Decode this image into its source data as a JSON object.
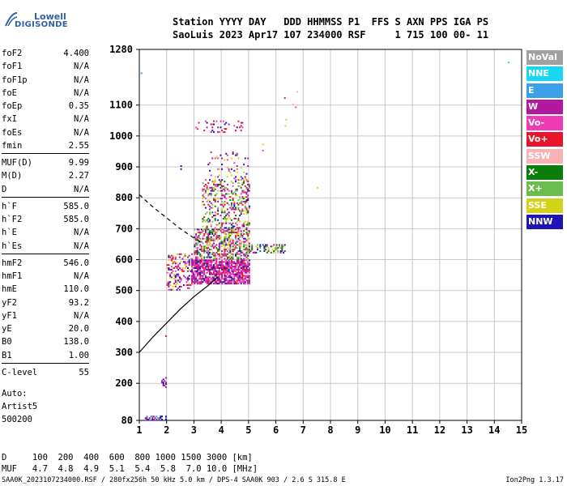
{
  "logo": {
    "line1": "Lowell",
    "line2": "DIGISONDE"
  },
  "header": {
    "line1": "Station YYYY DAY   DDD HHMMSS P1  FFS S AXN PPS IGA PS",
    "line2": "SaoLuis 2023 Apr17 107 234000 RSF     1 715 100 00- 11"
  },
  "params": [
    {
      "name": "foF2",
      "value": "4.400"
    },
    {
      "name": "foF1",
      "value": "N/A"
    },
    {
      "name": "foF1p",
      "value": "N/A"
    },
    {
      "name": "foE",
      "value": "N/A"
    },
    {
      "name": "foEp",
      "value": "0.35"
    },
    {
      "name": "fxI",
      "value": "N/A"
    },
    {
      "name": "foEs",
      "value": "N/A"
    },
    {
      "name": "fmin",
      "value": "2.55"
    },
    {
      "name": "MUF(D)",
      "value": "9.99"
    },
    {
      "name": "M(D)",
      "value": "2.27"
    },
    {
      "name": "D",
      "value": "N/A"
    },
    {
      "name": "h`F",
      "value": "585.0"
    },
    {
      "name": "h`F2",
      "value": "585.0"
    },
    {
      "name": "h`E",
      "value": "N/A"
    },
    {
      "name": "h`Es",
      "value": "N/A"
    },
    {
      "name": "hmF2",
      "value": "546.0"
    },
    {
      "name": "hmF1",
      "value": "N/A"
    },
    {
      "name": "hmE",
      "value": "110.0"
    },
    {
      "name": "yF2",
      "value": "93.2"
    },
    {
      "name": "yF1",
      "value": "N/A"
    },
    {
      "name": "yE",
      "value": "20.0"
    },
    {
      "name": "B0",
      "value": "138.0"
    },
    {
      "name": "B1",
      "value": "1.00"
    },
    {
      "name": "C-level",
      "value": "55"
    }
  ],
  "auto": [
    "Auto:",
    "Artist5",
    "500200"
  ],
  "legend": [
    {
      "label": "NoVal",
      "color": "#a0a0a0"
    },
    {
      "label": "NNE",
      "color": "#19d7f0"
    },
    {
      "label": "E",
      "color": "#3aa0e8"
    },
    {
      "label": "W",
      "color": "#b0199f"
    },
    {
      "label": "Vo-",
      "color": "#f03cb4"
    },
    {
      "label": "Vo+",
      "color": "#e8142d"
    },
    {
      "label": "SSW",
      "color": "#f8b4b4"
    },
    {
      "label": "X-",
      "color": "#0a7d0a"
    },
    {
      "label": "X+",
      "color": "#6cbd50"
    },
    {
      "label": "SSE",
      "color": "#d2d219"
    },
    {
      "label": "NNW",
      "color": "#1e14b4"
    }
  ],
  "footer": {
    "d_row": "D     100  200  400  600  800 1000 1500 3000 [km]",
    "muf_row": "MUF   4.7  4.8  4.9  5.1  5.4  5.8  7.0 10.0 [MHz]",
    "file_line": "SAA0K_2023107234000.RSF / 280fx256h 50 kHz 5.0 km / DPS-4 SAA0K 903 / 2.6 S 315.8 E",
    "version": "Ion2Png 1.3.17"
  },
  "chart_data": {
    "type": "scatter",
    "xlabel": "",
    "ylabel": "",
    "xlim": [
      1,
      15
    ],
    "ylim": [
      80,
      1280
    ],
    "xticks": [
      1,
      2,
      3,
      4,
      5,
      6,
      7,
      8,
      9,
      10,
      11,
      12,
      13,
      14,
      15
    ],
    "yticks": [
      80,
      200,
      300,
      400,
      500,
      600,
      700,
      800,
      900,
      1000,
      1100,
      1280
    ],
    "grid": true,
    "legend_position": "right",
    "series": [
      {
        "kind": "line",
        "style": "solid",
        "points": [
          [
            1.0,
            300
          ],
          [
            1.5,
            350
          ],
          [
            2.0,
            395
          ],
          [
            2.5,
            440
          ],
          [
            3.0,
            480
          ],
          [
            3.5,
            515
          ],
          [
            3.9,
            545
          ]
        ]
      },
      {
        "kind": "line",
        "style": "dashed",
        "points": [
          [
            1.0,
            810
          ],
          [
            1.5,
            770
          ],
          [
            2.0,
            735
          ],
          [
            2.5,
            700
          ],
          [
            3.0,
            670
          ],
          [
            3.3,
            655
          ]
        ]
      }
    ],
    "echo_regions": [
      {
        "x": [
          2.9,
          5.0
        ],
        "y": [
          520,
          600
        ],
        "density": 0.75,
        "colors": [
          "#b0199f",
          "#f03cb4",
          "#b0199f",
          "#f03cb4",
          "#1e14b4",
          "#e8142d"
        ]
      },
      {
        "x": [
          3.0,
          5.0
        ],
        "y": [
          600,
          700
        ],
        "density": 0.55,
        "colors": [
          "#b0199f",
          "#1e14b4",
          "#0a7d0a",
          "#f03cb4",
          "#d2d219",
          "#e8142d",
          "#6cbd50",
          "#f8b4b4"
        ]
      },
      {
        "x": [
          3.3,
          5.0
        ],
        "y": [
          700,
          860
        ],
        "density": 0.28,
        "colors": [
          "#b0199f",
          "#1e14b4",
          "#d2d219",
          "#0a7d0a",
          "#f03cb4",
          "#e8142d",
          "#6cbd50"
        ]
      },
      {
        "x": [
          5.0,
          6.3
        ],
        "y": [
          620,
          650
        ],
        "density": 0.35,
        "colors": [
          "#0a7d0a",
          "#6cbd50",
          "#b0199f",
          "#1e14b4",
          "#d2d219"
        ]
      },
      {
        "x": [
          2.0,
          2.9
        ],
        "y": [
          500,
          620
        ],
        "density": 0.3,
        "colors": [
          "#e8142d",
          "#b0199f",
          "#d2d219",
          "#f03cb4",
          "#1e14b4"
        ]
      },
      {
        "x": [
          3.5,
          5.0
        ],
        "y": [
          860,
          950
        ],
        "density": 0.08,
        "colors": [
          "#b0199f",
          "#1e14b4",
          "#d2d219",
          "#f03cb4"
        ]
      },
      {
        "x": [
          3.0,
          4.8
        ],
        "y": [
          1010,
          1050
        ],
        "density": 0.1,
        "colors": [
          "#b0199f",
          "#e8142d",
          "#f03cb4",
          "#1e14b4"
        ]
      },
      {
        "x": [
          1.2,
          2.0
        ],
        "y": [
          80,
          92
        ],
        "density": 0.6,
        "colors": [
          "#1e14b4",
          "#3aa0e8",
          "#b0199f"
        ]
      },
      {
        "x": [
          1.8,
          2.0
        ],
        "y": [
          185,
          220
        ],
        "density": 0.5,
        "colors": [
          "#1e14b4",
          "#b0199f"
        ]
      }
    ],
    "isolated_points": [
      {
        "x": 6.3,
        "y": 1120,
        "color": "#b0199f"
      },
      {
        "x": 6.35,
        "y": 1050,
        "color": "#d2d219"
      },
      {
        "x": 6.32,
        "y": 1030,
        "color": "#d2d219"
      },
      {
        "x": 6.6,
        "y": 1100,
        "color": "#f8b4b4"
      },
      {
        "x": 6.7,
        "y": 1090,
        "color": "#f03cb4"
      },
      {
        "x": 6.75,
        "y": 1140,
        "color": "#f8b4b4"
      },
      {
        "x": 7.5,
        "y": 830,
        "color": "#d2d219"
      },
      {
        "x": 14.5,
        "y": 1235,
        "color": "#19d7f0"
      },
      {
        "x": 1.05,
        "y": 1200,
        "color": "#3aa0e8"
      },
      {
        "x": 2.5,
        "y": 890,
        "color": "#1e14b4"
      },
      {
        "x": 2.5,
        "y": 900,
        "color": "#1e14b4"
      },
      {
        "x": 5.5,
        "y": 970,
        "color": "#d2d219"
      },
      {
        "x": 5.5,
        "y": 950,
        "color": "#f03cb4"
      },
      {
        "x": 1.95,
        "y": 350,
        "color": "#e8142d"
      },
      {
        "x": 6.2,
        "y": 640,
        "color": "#0a7d0a"
      }
    ]
  }
}
